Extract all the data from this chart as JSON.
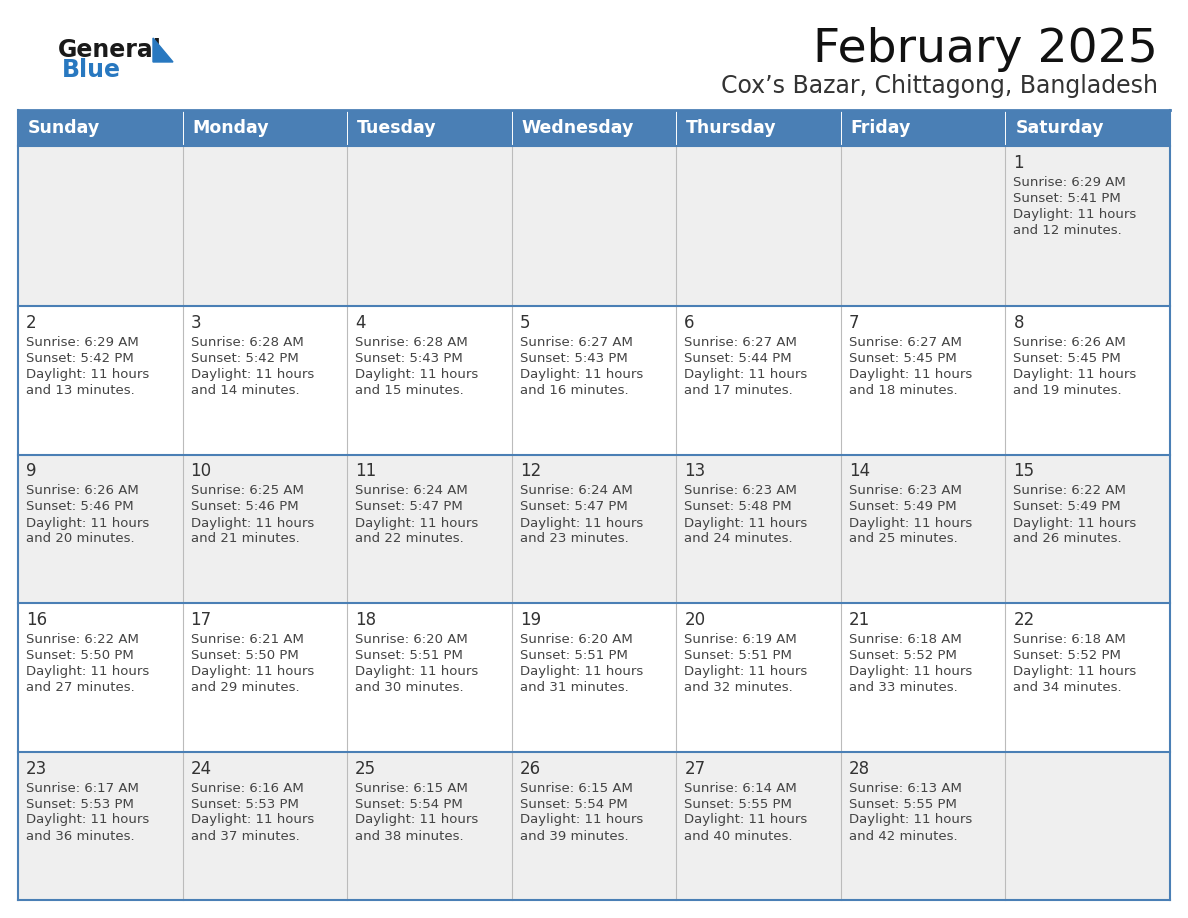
{
  "title": "February 2025",
  "subtitle": "Cox’s Bazar, Chittagong, Bangladesh",
  "days_of_week": [
    "Sunday",
    "Monday",
    "Tuesday",
    "Wednesday",
    "Thursday",
    "Friday",
    "Saturday"
  ],
  "header_bg": "#4a7fb5",
  "header_text": "#ffffff",
  "row0_bg": "#efefef",
  "odd_row_bg": "#efefef",
  "even_row_bg": "#ffffff",
  "border_color": "#4a7fb5",
  "cell_border_color": "#bbbbbb",
  "title_color": "#111111",
  "subtitle_color": "#333333",
  "day_number_color": "#333333",
  "cell_text_color": "#444444",
  "logo_general_color": "#1a1a1a",
  "logo_blue_color": "#2878c0",
  "calendar_data": [
    [
      null,
      null,
      null,
      null,
      null,
      null,
      {
        "day": 1,
        "sunrise": "6:29 AM",
        "sunset": "5:41 PM",
        "daylight": "11 hours and 12 minutes."
      }
    ],
    [
      {
        "day": 2,
        "sunrise": "6:29 AM",
        "sunset": "5:42 PM",
        "daylight": "11 hours and 13 minutes."
      },
      {
        "day": 3,
        "sunrise": "6:28 AM",
        "sunset": "5:42 PM",
        "daylight": "11 hours and 14 minutes."
      },
      {
        "day": 4,
        "sunrise": "6:28 AM",
        "sunset": "5:43 PM",
        "daylight": "11 hours and 15 minutes."
      },
      {
        "day": 5,
        "sunrise": "6:27 AM",
        "sunset": "5:43 PM",
        "daylight": "11 hours and 16 minutes."
      },
      {
        "day": 6,
        "sunrise": "6:27 AM",
        "sunset": "5:44 PM",
        "daylight": "11 hours and 17 minutes."
      },
      {
        "day": 7,
        "sunrise": "6:27 AM",
        "sunset": "5:45 PM",
        "daylight": "11 hours and 18 minutes."
      },
      {
        "day": 8,
        "sunrise": "6:26 AM",
        "sunset": "5:45 PM",
        "daylight": "11 hours and 19 minutes."
      }
    ],
    [
      {
        "day": 9,
        "sunrise": "6:26 AM",
        "sunset": "5:46 PM",
        "daylight": "11 hours and 20 minutes."
      },
      {
        "day": 10,
        "sunrise": "6:25 AM",
        "sunset": "5:46 PM",
        "daylight": "11 hours and 21 minutes."
      },
      {
        "day": 11,
        "sunrise": "6:24 AM",
        "sunset": "5:47 PM",
        "daylight": "11 hours and 22 minutes."
      },
      {
        "day": 12,
        "sunrise": "6:24 AM",
        "sunset": "5:47 PM",
        "daylight": "11 hours and 23 minutes."
      },
      {
        "day": 13,
        "sunrise": "6:23 AM",
        "sunset": "5:48 PM",
        "daylight": "11 hours and 24 minutes."
      },
      {
        "day": 14,
        "sunrise": "6:23 AM",
        "sunset": "5:49 PM",
        "daylight": "11 hours and 25 minutes."
      },
      {
        "day": 15,
        "sunrise": "6:22 AM",
        "sunset": "5:49 PM",
        "daylight": "11 hours and 26 minutes."
      }
    ],
    [
      {
        "day": 16,
        "sunrise": "6:22 AM",
        "sunset": "5:50 PM",
        "daylight": "11 hours and 27 minutes."
      },
      {
        "day": 17,
        "sunrise": "6:21 AM",
        "sunset": "5:50 PM",
        "daylight": "11 hours and 29 minutes."
      },
      {
        "day": 18,
        "sunrise": "6:20 AM",
        "sunset": "5:51 PM",
        "daylight": "11 hours and 30 minutes."
      },
      {
        "day": 19,
        "sunrise": "6:20 AM",
        "sunset": "5:51 PM",
        "daylight": "11 hours and 31 minutes."
      },
      {
        "day": 20,
        "sunrise": "6:19 AM",
        "sunset": "5:51 PM",
        "daylight": "11 hours and 32 minutes."
      },
      {
        "day": 21,
        "sunrise": "6:18 AM",
        "sunset": "5:52 PM",
        "daylight": "11 hours and 33 minutes."
      },
      {
        "day": 22,
        "sunrise": "6:18 AM",
        "sunset": "5:52 PM",
        "daylight": "11 hours and 34 minutes."
      }
    ],
    [
      {
        "day": 23,
        "sunrise": "6:17 AM",
        "sunset": "5:53 PM",
        "daylight": "11 hours and 36 minutes."
      },
      {
        "day": 24,
        "sunrise": "6:16 AM",
        "sunset": "5:53 PM",
        "daylight": "11 hours and 37 minutes."
      },
      {
        "day": 25,
        "sunrise": "6:15 AM",
        "sunset": "5:54 PM",
        "daylight": "11 hours and 38 minutes."
      },
      {
        "day": 26,
        "sunrise": "6:15 AM",
        "sunset": "5:54 PM",
        "daylight": "11 hours and 39 minutes."
      },
      {
        "day": 27,
        "sunrise": "6:14 AM",
        "sunset": "5:55 PM",
        "daylight": "11 hours and 40 minutes."
      },
      {
        "day": 28,
        "sunrise": "6:13 AM",
        "sunset": "5:55 PM",
        "daylight": "11 hours and 42 minutes."
      },
      null
    ]
  ]
}
